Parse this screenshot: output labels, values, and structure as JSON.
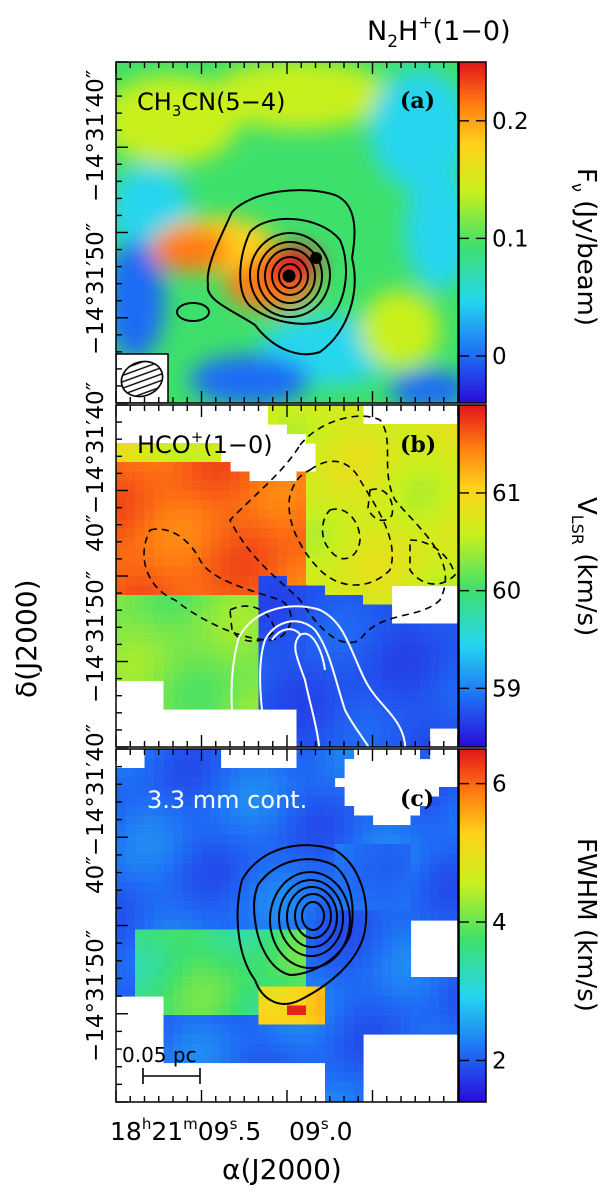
{
  "figure": {
    "top_title": "N2H+(1−0)",
    "top_title_parts": {
      "base": "N",
      "sub": "2",
      "mid": "H",
      "sup": "+",
      "tail": "(1−0)"
    },
    "ylabel": "δ(J2000)",
    "xlabel": "α(J2000)",
    "x_ticks": {
      "t1": {
        "h": "18",
        "hu": "h",
        "m": "21",
        "mu": "m",
        "s": "09",
        "su": "s",
        "frac": ".5"
      },
      "t2": {
        "s": "09",
        "su": "s",
        "frac": ".0"
      }
    },
    "y_ticks": {
      "top": "−14°31′40″",
      "mid": "−14°31′50″",
      "bottom_joined": "40″−14°31′40″"
    },
    "scalebar_label": "0.05 pc",
    "colors": {
      "black_contour": "#000000",
      "white_contour": "#ffffff",
      "colormap": [
        "#2a0bd8",
        "#1f6cf5",
        "#25d6ee",
        "#3ee06c",
        "#c8f01e",
        "#ffd21a",
        "#ff7a12",
        "#e3141b"
      ]
    }
  },
  "panels": [
    {
      "tag": "(a)",
      "line_label": {
        "pre": "CH",
        "sub1": "3",
        "mid": "CN(5−4)"
      },
      "colorbar_label": "Fν (Jy/beam)",
      "colorbar_label_parts": {
        "base": "F",
        "sub": "ν",
        "tail": " (Jy/beam)"
      },
      "colorbar_ticks": [
        {
          "v": 0.2,
          "t": "0.2"
        },
        {
          "v": 0.1,
          "t": "0.1"
        },
        {
          "v": 0,
          "t": "0"
        }
      ],
      "colorbar_range": [
        -0.04,
        0.25
      ]
    },
    {
      "tag": "(b)",
      "line_label": {
        "pre": "HCO",
        "sup": "+",
        "mid": "(1−0)"
      },
      "colorbar_label": "VLSR (km/s)",
      "colorbar_label_parts": {
        "base": "V",
        "sub": "LSR",
        "tail": " (km/s)"
      },
      "colorbar_ticks": [
        {
          "v": 61,
          "t": "61"
        },
        {
          "v": 60,
          "t": "60"
        },
        {
          "v": 59,
          "t": "59"
        }
      ],
      "colorbar_range": [
        58.4,
        61.9
      ]
    },
    {
      "tag": "(c)",
      "line_label": {
        "pre": "3.3 mm cont."
      },
      "colorbar_label": "FWHM (km/s)",
      "colorbar_label_parts": {
        "base": "FWHM",
        "tail": " (km/s)"
      },
      "colorbar_ticks": [
        {
          "v": 6,
          "t": "6"
        },
        {
          "v": 4,
          "t": "4"
        },
        {
          "v": 2,
          "t": "2"
        }
      ],
      "colorbar_range": [
        1.4,
        6.5
      ]
    }
  ]
}
